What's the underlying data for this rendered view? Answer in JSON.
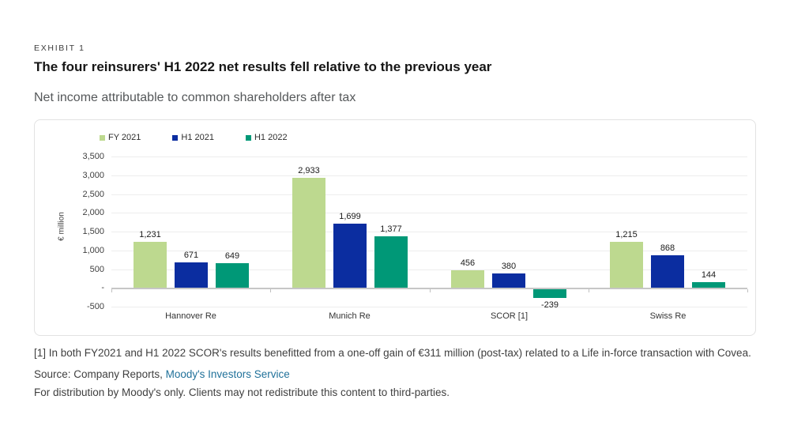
{
  "header": {
    "exhibit_label": "EXHIBIT 1",
    "title": "The four reinsurers' H1 2022 net results fell relative to the previous year",
    "subtitle": "Net income attributable to common shareholders after tax"
  },
  "chart_data": {
    "type": "bar",
    "categories": [
      "Hannover Re",
      "Munich Re",
      "SCOR [1]",
      "Swiss Re"
    ],
    "series": [
      {
        "name": "FY 2021",
        "color": "#bdd98f",
        "values": [
          1231,
          2933,
          456,
          1215
        ]
      },
      {
        "name": "H1 2021",
        "color": "#0b2da0",
        "values": [
          671,
          1699,
          380,
          868
        ]
      },
      {
        "name": "H1 2022",
        "color": "#009877",
        "values": [
          649,
          1377,
          -239,
          144
        ]
      }
    ],
    "title": "",
    "xlabel": "",
    "ylabel": "€ million",
    "ylim": [
      -500,
      3500
    ],
    "ytick_step": 500,
    "ytick_labels_top_to_bottom": [
      "3,500",
      "3,000",
      "2,500",
      "2,000",
      "1,500",
      "1,000",
      "500",
      "-",
      "-500"
    ],
    "grid": true,
    "legend_position": "top-left",
    "value_labels_shown": true
  },
  "notes": {
    "footnote": "[1] In both FY2021 and H1 2022 SCOR's results benefitted from a one-off gain of €311 million (post-tax) related to a Life in-force transaction with Covea.",
    "source_prefix": "Source: Company Reports, ",
    "source_link": "Moody's Investors Service",
    "distribution": "For distribution by Moody's only. Clients may not redistribute this content to third-parties."
  },
  "colors": {
    "fy2021": "#bdd98f",
    "h1_2021": "#0b2da0",
    "h1_2022": "#009877",
    "link": "#20719a",
    "gridline": "#ededed",
    "zero_axis": "#c6c6c6",
    "card_border": "#e2e2e2"
  }
}
